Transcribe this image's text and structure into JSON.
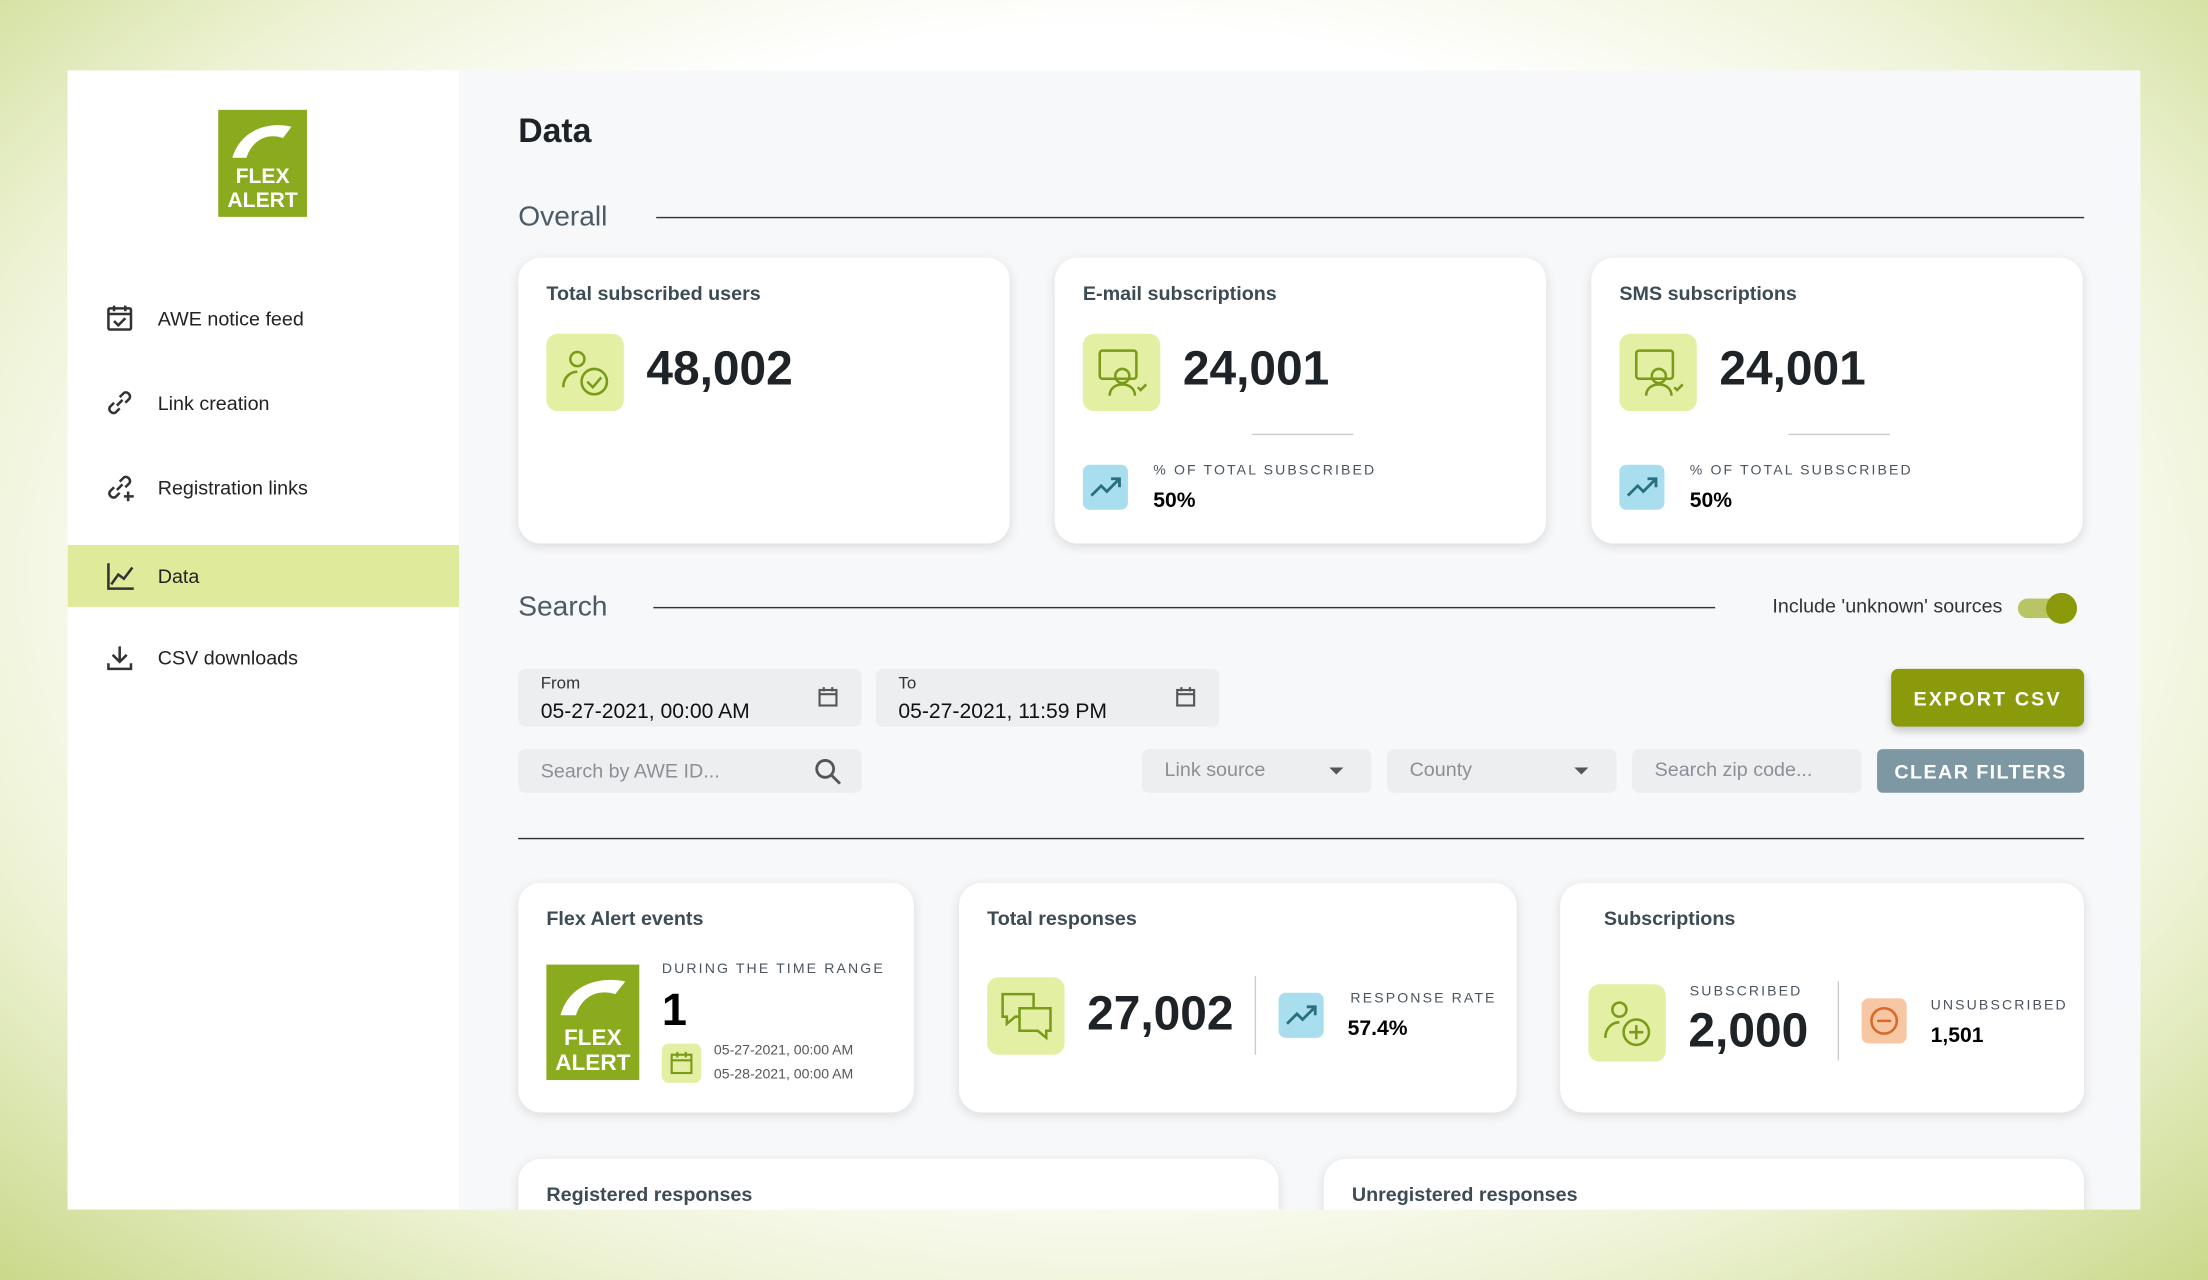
{
  "logo": {
    "line1": "FLEX",
    "line2": "ALERT"
  },
  "nav": [
    "AWE notice feed",
    "Link creation",
    "Registration links",
    "Data",
    "CSV downloads"
  ],
  "page_title": "Data",
  "overall": {
    "heading": "Overall",
    "cards": [
      {
        "title": "Total subscribed users",
        "value": "48,002"
      },
      {
        "title": "E-mail subscriptions",
        "value": "24,001",
        "sub_label": "% OF TOTAL SUBSCRIBED",
        "sub_value": "50%"
      },
      {
        "title": "SMS subscriptions",
        "value": "24,001",
        "sub_label": "% OF TOTAL SUBSCRIBED",
        "sub_value": "50%"
      }
    ]
  },
  "search": {
    "heading": "Search",
    "toggle_label": "Include 'unknown' sources",
    "from_label": "From",
    "from_value": "05-27-2021, 00:00 AM",
    "to_label": "To",
    "to_value": "05-27-2021, 11:59 PM",
    "export": "EXPORT CSV",
    "awe_placeholder": "Search by AWE ID...",
    "link_source": "Link source",
    "county": "County",
    "zip_placeholder": "Search zip code...",
    "clear": "CLEAR FILTERS"
  },
  "events": {
    "title": "Flex Alert events",
    "range_label": "DURING THE TIME RANGE",
    "count": "1",
    "start": "05-27-2021, 00:00 AM",
    "end": "05-28-2021, 00:00 AM"
  },
  "responses": {
    "title": "Total responses",
    "value": "27,002",
    "rate_label": "RESPONSE RATE",
    "rate": "57.4%"
  },
  "subscriptions": {
    "title": "Subscriptions",
    "sub_label": "SUBSCRIBED",
    "sub_value": "2,000",
    "unsub_label": "UNSUBSCRIBED",
    "unsub_value": "1,501"
  },
  "registered": {
    "title": "Registered responses"
  },
  "unregistered": {
    "title": "Unregistered responses"
  }
}
